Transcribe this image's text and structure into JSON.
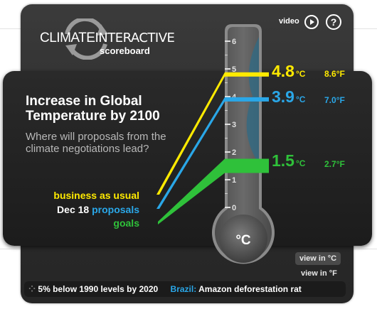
{
  "brand": {
    "climate": "CLIMATE",
    "interactive": "INTERACTIVE",
    "scoreboard": "scoreboard"
  },
  "controls": {
    "video_label": "video",
    "play_icon": "play-icon",
    "help_icon": "help-icon",
    "help_glyph": "?"
  },
  "main": {
    "title": "Increase in Global Temperature by 2100",
    "question": "Where will proposals from the climate negotiations lead?"
  },
  "legend": {
    "business_as_usual": "business as usual",
    "dec18_prefix": "Dec 18",
    "proposals": "proposals",
    "goals": "goals"
  },
  "thermometer": {
    "unit_label": "°C",
    "ticks": [
      "6",
      "5",
      "4",
      "3",
      "2",
      "1",
      "0"
    ]
  },
  "readings": {
    "business_as_usual": {
      "c": "4.8",
      "c_unit": "°C",
      "f": "8.6",
      "f_unit": "°F",
      "value": 4.8,
      "color": "#ffea00"
    },
    "proposals": {
      "c": "3.9",
      "c_unit": "°C",
      "f": "7.0",
      "f_unit": "°F",
      "value": 3.9,
      "color": "#2aa7e8"
    },
    "goals": {
      "c": "1.5",
      "c_unit": "°C",
      "f": "2.7",
      "f_unit": "°F",
      "value": 1.5,
      "color": "#2fc13a"
    }
  },
  "view_options": {
    "celsius": "view in °C",
    "fahrenheit": "view in °F"
  },
  "ticker": {
    "item1": "5% below 1990 levels by 2020",
    "item2_label": "Brazil:",
    "item2_text": "Amazon deforestation rat"
  }
}
